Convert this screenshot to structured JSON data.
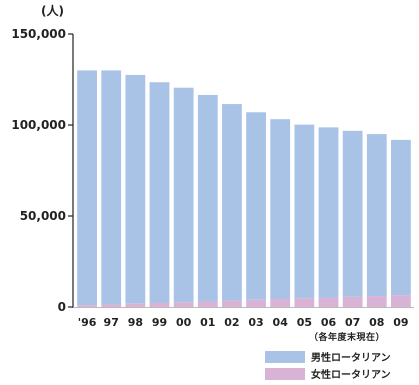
{
  "chart_data": {
    "type": "bar",
    "stacked": true,
    "unit": "(人)",
    "categories": [
      "'96",
      "97",
      "98",
      "99",
      "00",
      "01",
      "02",
      "03",
      "04",
      "05",
      "06",
      "07",
      "08",
      "09"
    ],
    "series": [
      {
        "name": "女性ロータリアン",
        "color": "#d9b3d6",
        "values": [
          1000,
          1400,
          1800,
          2200,
          2600,
          3000,
          3500,
          4000,
          4400,
          4800,
          5200,
          5600,
          6000,
          6400
        ]
      },
      {
        "name": "男性ロータリアン",
        "color": "#a9c3e6",
        "values": [
          129000,
          128600,
          125700,
          121300,
          117900,
          113500,
          108000,
          103000,
          98800,
          95400,
          93500,
          91200,
          89000,
          85400
        ]
      }
    ],
    "y_ticks": [
      "0",
      "50,000",
      "100,000",
      "150,000"
    ],
    "y_tick_values": [
      0,
      50000,
      100000,
      150000
    ],
    "ylim": [
      0,
      150000
    ],
    "note": "（各年度末現在）",
    "legend_position": "bottom-right"
  }
}
